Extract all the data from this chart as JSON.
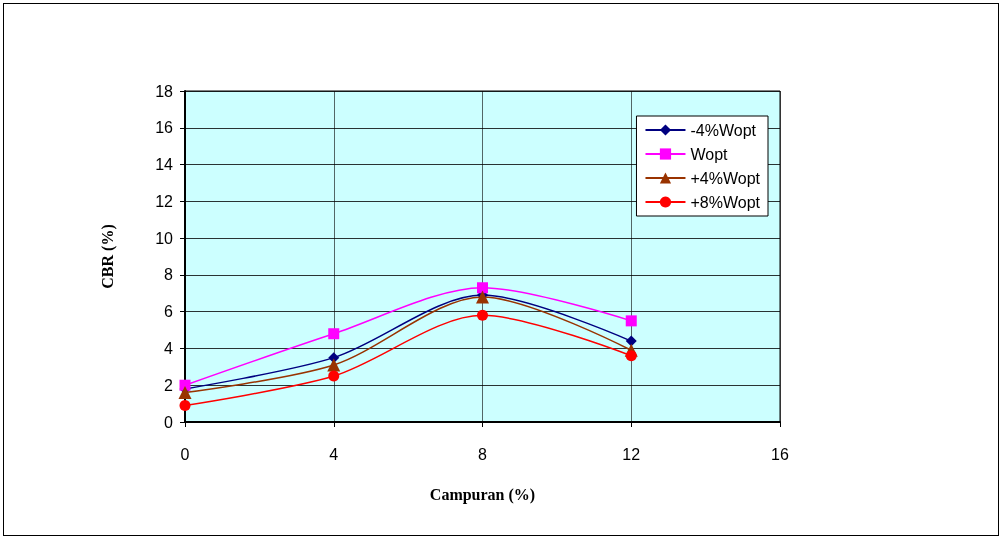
{
  "chart_data": {
    "type": "line",
    "xlabel": "Campuran (%)",
    "ylabel": "CBR (%)",
    "x": [
      0,
      4,
      8,
      12
    ],
    "xlim": [
      0,
      16
    ],
    "xticks": [
      0,
      4,
      8,
      12,
      16
    ],
    "ylim": [
      0,
      18
    ],
    "yticks": [
      0,
      2,
      4,
      6,
      8,
      10,
      12,
      14,
      16,
      18
    ],
    "grid": true,
    "legend": "top right",
    "series": [
      {
        "name": "-4%Wopt",
        "color": "#000080",
        "marker": "diamond",
        "values": [
          1.8,
          3.5,
          6.9,
          4.4
        ]
      },
      {
        "name": "Wopt",
        "color": "#ff00ff",
        "marker": "square",
        "values": [
          2.0,
          4.8,
          7.3,
          5.5
        ]
      },
      {
        "name": "+4%Wopt",
        "color": "#993300",
        "marker": "triangle",
        "values": [
          1.6,
          3.1,
          6.8,
          3.9
        ]
      },
      {
        "name": "+8%Wopt",
        "color": "#ff0000",
        "marker": "circle",
        "values": [
          0.9,
          2.5,
          5.8,
          3.6
        ]
      }
    ]
  }
}
